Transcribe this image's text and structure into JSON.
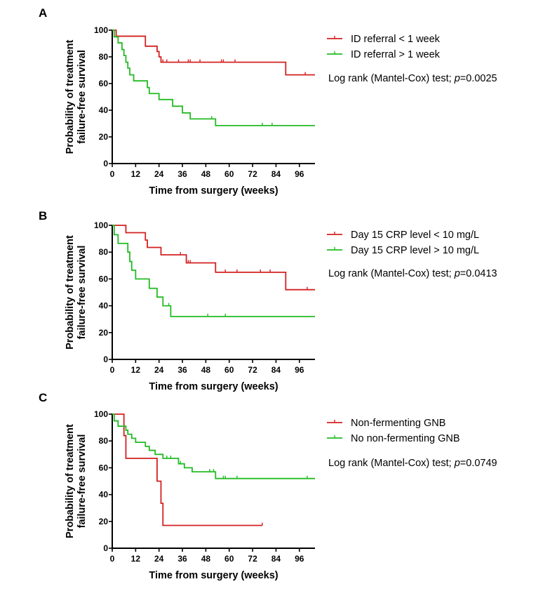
{
  "chart_data": [
    {
      "type": "line",
      "panel": "A",
      "ylabel": [
        "Probability of treatment",
        "failure-free survival"
      ],
      "xlabel": "Time from surgery (weeks)",
      "xlim": [
        0,
        104
      ],
      "ylim": [
        0,
        100
      ],
      "xticks": [
        "0",
        "12",
        "24",
        "36",
        "48",
        "60",
        "72",
        "84",
        "96"
      ],
      "yticks": [
        "0",
        "20",
        "40",
        "60",
        "80",
        "100"
      ],
      "grid": false,
      "legend_position": "right",
      "stat_text": {
        "prefix": "Log rank (Mantel-Cox) test; ",
        "italic": "p",
        "suffix": "=0.0025"
      },
      "series": [
        {
          "name": "ID referral < 1 week",
          "color": "#d42020",
          "steps": [
            [
              0,
              100
            ],
            [
              2,
              95.5
            ],
            [
              16,
              95.5
            ],
            [
              17,
              88
            ],
            [
              22,
              88
            ],
            [
              23,
              84
            ],
            [
              24,
              80
            ],
            [
              25,
              76
            ],
            [
              89,
              76
            ],
            [
              89,
              66.5
            ],
            [
              104,
              66.5
            ]
          ],
          "censored": [
            [
              26,
              76
            ],
            [
              28,
              76
            ],
            [
              34,
              76
            ],
            [
              39,
              76
            ],
            [
              40,
              76
            ],
            [
              45,
              76
            ],
            [
              56,
              76
            ],
            [
              57,
              76
            ],
            [
              63,
              76
            ],
            [
              99,
              66.5
            ]
          ]
        },
        {
          "name": "ID referral > 1 week",
          "color": "#22bb22",
          "steps": [
            [
              0,
              100
            ],
            [
              1,
              95
            ],
            [
              3,
              90.5
            ],
            [
              5,
              85.5
            ],
            [
              6,
              81
            ],
            [
              7,
              76
            ],
            [
              8,
              71.5
            ],
            [
              9,
              66.5
            ],
            [
              11,
              62
            ],
            [
              17,
              62
            ],
            [
              18,
              57
            ],
            [
              19,
              52.5
            ],
            [
              23,
              52.5
            ],
            [
              24,
              48
            ],
            [
              30,
              48
            ],
            [
              31,
              43
            ],
            [
              35,
              43
            ],
            [
              36,
              38
            ],
            [
              39,
              38
            ],
            [
              40,
              33.5
            ],
            [
              52,
              33.5
            ],
            [
              53,
              28.5
            ],
            [
              104,
              28.5
            ]
          ],
          "censored": [
            [
              51,
              33.5
            ],
            [
              77,
              28.5
            ],
            [
              82,
              28.5
            ]
          ]
        }
      ]
    },
    {
      "type": "line",
      "panel": "B",
      "ylabel": [
        "Probability of treatment",
        "failure-free survival"
      ],
      "xlabel": "Time from surgery (weeks)",
      "xlim": [
        0,
        104
      ],
      "ylim": [
        0,
        100
      ],
      "xticks": [
        "0",
        "12",
        "24",
        "36",
        "48",
        "60",
        "72",
        "84",
        "96"
      ],
      "yticks": [
        "0",
        "20",
        "40",
        "60",
        "80",
        "100"
      ],
      "grid": false,
      "legend_position": "right",
      "stat_text": {
        "prefix": "Log rank (Mantel-Cox) test; ",
        "italic": "p",
        "suffix": "=0.0413"
      },
      "series": [
        {
          "name": "Day  15 CRP level < 10 mg/L",
          "color": "#d42020",
          "steps": [
            [
              0,
              100
            ],
            [
              6,
              100
            ],
            [
              7,
              94.5
            ],
            [
              16,
              94.5
            ],
            [
              17,
              89
            ],
            [
              18,
              83.5
            ],
            [
              24,
              83.5
            ],
            [
              25,
              78
            ],
            [
              37,
              78
            ],
            [
              38,
              72
            ],
            [
              52,
              72
            ],
            [
              53,
              65
            ],
            [
              89,
              65
            ],
            [
              89,
              52
            ],
            [
              104,
              52
            ]
          ],
          "censored": [
            [
              35,
              78
            ],
            [
              39,
              72
            ],
            [
              40,
              72
            ],
            [
              58,
              65
            ],
            [
              64,
              65
            ],
            [
              76,
              65
            ],
            [
              81,
              65
            ],
            [
              100,
              52
            ]
          ]
        },
        {
          "name": "Day  15 CRP level > 10 mg/L",
          "color": "#22bb22",
          "steps": [
            [
              0,
              100
            ],
            [
              1,
              93
            ],
            [
              3,
              86.5
            ],
            [
              7,
              86.5
            ],
            [
              8,
              80
            ],
            [
              9,
              73
            ],
            [
              10,
              66.5
            ],
            [
              12,
              60
            ],
            [
              18,
              60
            ],
            [
              19,
              53
            ],
            [
              22,
              53
            ],
            [
              23,
              46.5
            ],
            [
              25,
              46.5
            ],
            [
              26,
              40
            ],
            [
              29,
              40
            ],
            [
              30,
              32
            ],
            [
              104,
              32
            ]
          ],
          "censored": [
            [
              29,
              40
            ],
            [
              49,
              32
            ],
            [
              58,
              32
            ]
          ]
        }
      ]
    },
    {
      "type": "line",
      "panel": "C",
      "ylabel": [
        "Probability of treatment",
        "failure-free survival"
      ],
      "xlabel": "Time from surgery (weeks)",
      "xlim": [
        0,
        104
      ],
      "ylim": [
        0,
        100
      ],
      "xticks": [
        "0",
        "12",
        "24",
        "36",
        "48",
        "60",
        "72",
        "84",
        "96"
      ],
      "yticks": [
        "0",
        "20",
        "40",
        "60",
        "80",
        "100"
      ],
      "grid": false,
      "legend_position": "right",
      "stat_text": {
        "prefix": "Log rank (Mantel-Cox) test; ",
        "italic": "p",
        "suffix": "=0.0749"
      },
      "series": [
        {
          "name": "Non-fermenting GNB",
          "color": "#d42020",
          "steps": [
            [
              0,
              100
            ],
            [
              5,
              100
            ],
            [
              6,
              84
            ],
            [
              7,
              67
            ],
            [
              22,
              67
            ],
            [
              23,
              50
            ],
            [
              25,
              50
            ],
            [
              25,
              33.5
            ],
            [
              26,
              17
            ],
            [
              77,
              17
            ]
          ],
          "censored": [
            [
              77,
              17
            ]
          ]
        },
        {
          "name": "No non-fermenting GNB",
          "color": "#22bb22",
          "steps": [
            [
              0,
              100
            ],
            [
              1,
              95
            ],
            [
              3,
              91
            ],
            [
              6,
              91
            ],
            [
              7,
              88
            ],
            [
              8,
              85
            ],
            [
              10,
              82
            ],
            [
              12,
              79
            ],
            [
              16,
              79
            ],
            [
              17,
              76
            ],
            [
              19,
              73
            ],
            [
              22,
              70
            ],
            [
              25,
              70
            ],
            [
              26,
              67
            ],
            [
              33,
              67
            ],
            [
              34,
              63
            ],
            [
              36,
              63
            ],
            [
              37,
              60
            ],
            [
              40,
              60
            ],
            [
              41,
              57
            ],
            [
              52,
              57
            ],
            [
              53,
              52
            ],
            [
              104,
              52
            ]
          ],
          "censored": [
            [
              28,
              67
            ],
            [
              30,
              67
            ],
            [
              35,
              63
            ],
            [
              50,
              57
            ],
            [
              52,
              57
            ],
            [
              57,
              52
            ],
            [
              58,
              52
            ],
            [
              64,
              52
            ],
            [
              100,
              52
            ]
          ]
        }
      ]
    }
  ]
}
